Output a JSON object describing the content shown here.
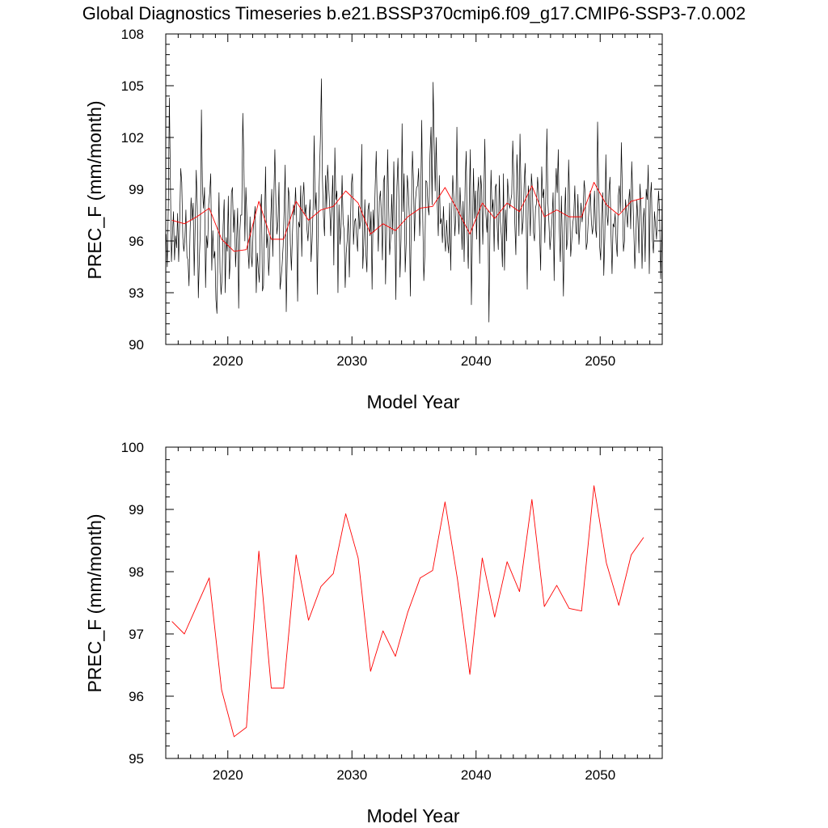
{
  "figure": {
    "title": "Global Diagnostics Timeseries b.e21.BSSP370cmip6.f09_g17.CMIP6-SSP3-7.0.002"
  },
  "colors": {
    "monthly_line": "#000000",
    "annual_line": "#ff0000",
    "axis": "#000000"
  },
  "chart_data": [
    {
      "type": "line",
      "xlabel": "Model Year",
      "ylabel": "PREC_F (mm/month)",
      "xlim": [
        2015,
        2055
      ],
      "ylim": [
        90,
        108
      ],
      "x_ticks": [
        2020,
        2030,
        2040,
        2050
      ],
      "y_ticks": [
        90,
        93,
        96,
        99,
        102,
        105,
        108
      ],
      "series": [
        {
          "kind": "monthly",
          "x_start": 2015.04,
          "x_step": 0.0833333,
          "values": [
            96.4,
            94.5,
            98.1,
            104.3,
            99.5,
            94.8,
            96.4,
            97.7,
            94.9,
            96.3,
            95.6,
            97.6,
            94.8,
            97.1,
            100.2,
            99.4,
            96.2,
            95.4,
            96.1,
            97.8,
            95.1,
            94.9,
            93.4,
            96.5,
            98.5,
            97.2,
            98.2,
            94.0,
            97.0,
            100.1,
            98.0,
            92.7,
            95.0,
            96.7,
            103.6,
            99.0,
            97.9,
            99.1,
            93.3,
            96.3,
            95.6,
            98.1,
            98.8,
            99.9,
            94.3,
            96.6,
            95.0,
            95.4,
            92.6,
            91.8,
            95.8,
            98.8,
            94.2,
            92.9,
            93.9,
            96.9,
            98.4,
            93.0,
            96.2,
            95.4,
            98.6,
            93.8,
            95.0,
            98.8,
            99.1,
            96.5,
            97.8,
            94.5,
            96.0,
            97.9,
            92.1,
            96.4,
            97.5,
            97.5,
            103.4,
            100.8,
            96.0,
            99.1,
            97.3,
            95.5,
            94.4,
            97.4,
            95.2,
            94.5,
            96.6,
            97.3,
            98.0,
            93.0,
            95.3,
            94.3,
            93.6,
            97.4,
            98.7,
            93.1,
            93.4,
            96.8,
            100.3,
            95.6,
            96.4,
            94.0,
            95.3,
            97.3,
            99.0,
            95.1,
            98.5,
            101.3,
            98.2,
            96.4,
            97.1,
            99.4,
            93.2,
            93.8,
            94.6,
            95.7,
            97.9,
            100.4,
            91.9,
            95.2,
            99.1,
            98.6,
            95.8,
            94.3,
            96.4,
            98.1,
            97.5,
            99.1,
            97.3,
            92.5,
            97.1,
            96.8,
            99.2,
            95.1,
            98.4,
            99.4,
            97.5,
            98.1,
            96.7,
            96.0,
            97.2,
            98.4,
            94.8,
            96.0,
            98.0,
            102.1,
            97.8,
            98.8,
            92.9,
            97.3,
            99.6,
            101.9,
            105.4,
            99.6,
            97.4,
            96.3,
            99.8,
            97.9,
            100.4,
            99.2,
            98.0,
            96.3,
            98.0,
            99.8,
            94.6,
            101.4,
            98.4,
            98.9,
            93.0,
            98.1,
            95.8,
            96.8,
            99.8,
            97.1,
            96.6,
            93.3,
            95.3,
            96.1,
            97.5,
            93.9,
            96.9,
            99.3,
            99.9,
            95.8,
            97.1,
            97.3,
            96.2,
            95.4,
            98.0,
            96.7,
            97.2,
            101.6,
            94.4,
            95.8,
            98.4,
            95.3,
            94.2,
            97.8,
            98.2,
            96.3,
            97.7,
            93.2,
            97.8,
            96.5,
            99.2,
            101.2,
            97.9,
            95.4,
            98.3,
            98.9,
            97.5,
            94.9,
            99.4,
            99.8,
            93.5,
            96.5,
            101.3,
            98.1,
            95.2,
            96.2,
            98.7,
            96.4,
            100.6,
            97.2,
            92.6,
            99.1,
            100.8,
            98.2,
            93.9,
            96.1,
            102.8,
            97.7,
            99.9,
            94.2,
            95.9,
            99.8,
            99.0,
            97.4,
            92.8,
            97.8,
            101.2,
            99.5,
            96.0,
            98.4,
            99.1,
            99.2,
            100.2,
            96.3,
            98.4,
            103.0,
            97.3,
            93.7,
            95.2,
            99.5,
            99.4,
            98.0,
            97.5,
            101.0,
            102.6,
            98.1,
            105.2,
            101.8,
            98.9,
            102.0,
            98.2,
            96.3,
            99.8,
            97.0,
            97.3,
            95.9,
            98.0,
            96.3,
            95.4,
            97.2,
            96.0,
            95.3,
            98.2,
            94.3,
            97.7,
            99.8,
            98.5,
            96.3,
            97.5,
            102.6,
            97.8,
            96.4,
            99.1,
            97.7,
            95.5,
            98.3,
            94.8,
            99.5,
            101.2,
            96.4,
            94.4,
            98.5,
            101.3,
            92.3,
            96.3,
            100.2,
            97.3,
            98.9,
            96.1,
            98.8,
            99.7,
            94.7,
            99.8,
            99.0,
            95.8,
            98.4,
            101.9,
            97.6,
            96.5,
            97.8,
            91.3,
            96.9,
            100.1,
            97.7,
            98.4,
            95.4,
            99.1,
            99.3,
            96.8,
            95.5,
            99.8,
            97.1,
            96.3,
            94.5,
            99.9,
            94.3,
            97.8,
            96.0,
            99.6,
            98.6,
            97.9,
            98.3,
            98.7,
            101.8,
            99.7,
            97.0,
            95.2,
            101.0,
            99.4,
            96.3,
            102.2,
            98.8,
            96.4,
            97.1,
            99.3,
            100.5,
            97.2,
            93.2,
            99.2,
            98.5,
            96.3,
            99.9,
            99.0,
            96.5,
            96.0,
            97.9,
            98.2,
            99.7,
            98.7,
            96.3,
            94.3,
            100.3,
            98.5,
            99.0,
            95.9,
            98.7,
            102.5,
            98.2,
            97.0,
            95.5,
            96.4,
            97.3,
            98.8,
            93.7,
            98.2,
            100.2,
            98.8,
            101.3,
            96.7,
            94.8,
            98.6,
            95.9,
            92.8,
            97.2,
            99.1,
            95.5,
            96.1,
            100.7,
            98.4,
            95.1,
            96.0,
            97.0,
            97.5,
            99.2,
            96.5,
            96.4,
            98.7,
            95.8,
            97.0,
            98.2,
            97.1,
            97.7,
            99.5,
            98.8,
            95.5,
            95.9,
            97.2,
            98.1,
            98.9,
            97.1,
            96.4,
            97.0,
            98.9,
            96.7,
            96.2,
            102.9,
            99.5,
            95.7,
            94.9,
            97.6,
            98.8,
            94.0,
            96.2,
            101.0,
            97.6,
            96.9,
            98.9,
            99.7,
            96.4,
            94.1,
            97.0,
            96.8,
            97.6,
            95.9,
            95.1,
            98.6,
            99.2,
            97.7,
            101.7,
            98.7,
            95.4,
            96.0,
            98.4,
            97.7,
            96.8,
            98.2,
            99.0,
            96.7,
            100.6,
            98.7,
            96.7,
            94.4,
            96.1,
            98.4,
            97.3,
            95.3,
            99.3,
            98.0,
            94.4,
            97.1,
            97.9,
            94.8,
            99.0,
            98.4,
            100.4,
            94.1,
            98.5,
            99.4,
            96.1,
            95.3,
            97.7,
            96.9,
            96.1,
            97.7,
            98.9,
            97.5,
            93.8,
            96.2,
            99.6,
            98.2,
            97.1,
            96.5,
            100.3,
            96.7,
            104.9,
            97.2,
            94.6,
            95.5,
            101.1,
            98.0
          ]
        },
        {
          "kind": "annual",
          "x_start": 2015.5,
          "x_step": 1.0,
          "values": [
            97.2,
            97.0,
            97.4,
            97.9,
            96.1,
            95.4,
            95.5,
            98.3,
            96.1,
            96.1,
            98.3,
            97.2,
            97.8,
            98.0,
            98.9,
            98.2,
            96.4,
            97.0,
            96.6,
            97.4,
            97.9,
            98.0,
            99.1,
            97.8,
            96.4,
            98.2,
            97.3,
            98.2,
            97.7,
            99.2,
            97.4,
            97.8,
            97.4,
            97.4,
            99.4,
            98.1,
            97.5,
            98.3,
            98.5
          ]
        }
      ]
    },
    {
      "type": "line",
      "xlabel": "Model Year",
      "ylabel": "PREC_F (mm/month)",
      "xlim": [
        2015,
        2055
      ],
      "ylim": [
        95,
        100
      ],
      "x_ticks": [
        2020,
        2030,
        2040,
        2050
      ],
      "y_ticks": [
        95,
        96,
        97,
        98,
        99,
        100
      ],
      "series": [
        {
          "kind": "annual",
          "x_start": 2015.5,
          "x_step": 1.0,
          "values": [
            97.2,
            97.0,
            97.45,
            97.9,
            96.1,
            95.35,
            95.5,
            98.33,
            96.13,
            96.13,
            98.27,
            97.22,
            97.76,
            97.97,
            98.93,
            98.22,
            96.4,
            97.05,
            96.64,
            97.35,
            97.9,
            98.02,
            99.12,
            97.88,
            96.35,
            98.22,
            97.27,
            98.16,
            97.68,
            99.16,
            97.44,
            97.78,
            97.41,
            97.37,
            99.38,
            98.14,
            97.46,
            98.27,
            98.55
          ]
        }
      ]
    }
  ]
}
